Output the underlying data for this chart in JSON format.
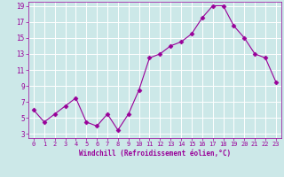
{
  "x": [
    0,
    1,
    2,
    3,
    4,
    5,
    6,
    7,
    8,
    9,
    10,
    11,
    12,
    13,
    14,
    15,
    16,
    17,
    18,
    19,
    20,
    21,
    22,
    23
  ],
  "y": [
    6,
    4.5,
    5.5,
    6.5,
    7.5,
    4.5,
    4,
    5.5,
    3.5,
    5.5,
    8.5,
    12.5,
    13,
    14,
    14.5,
    15.5,
    17.5,
    19,
    19,
    16.5,
    15,
    13,
    12.5,
    9.5
  ],
  "line_color": "#990099",
  "marker": "D",
  "marker_size": 2.5,
  "bg_color": "#cce8e8",
  "grid_color": "#aacccc",
  "xlabel": "Windchill (Refroidissement éolien,°C)",
  "xlabel_color": "#990099",
  "tick_color": "#990099",
  "ylim_min": 2.5,
  "ylim_max": 19.5,
  "xlim_min": -0.5,
  "xlim_max": 23.5,
  "yticks": [
    3,
    5,
    7,
    9,
    11,
    13,
    15,
    17,
    19
  ],
  "xticks": [
    0,
    1,
    2,
    3,
    4,
    5,
    6,
    7,
    8,
    9,
    10,
    11,
    12,
    13,
    14,
    15,
    16,
    17,
    18,
    19,
    20,
    21,
    22,
    23
  ],
  "figsize": [
    3.2,
    2.0
  ],
  "dpi": 100
}
